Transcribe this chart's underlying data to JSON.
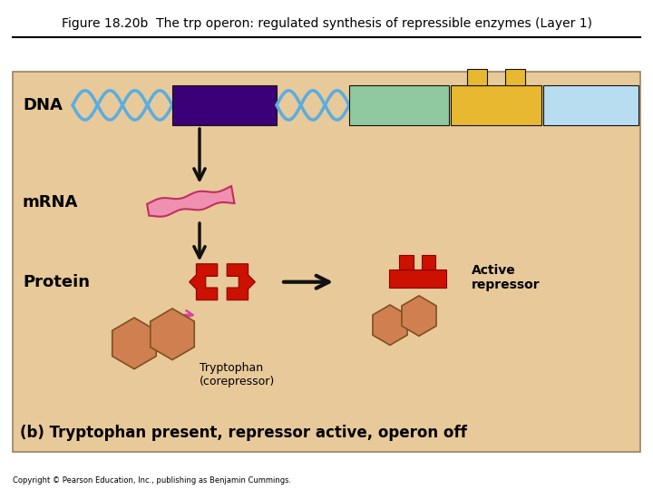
{
  "title": "Figure 18.20b  The trp operon: regulated synthesis of repressible enzymes (Layer 1)",
  "subtitle": "(b) Tryptophan present, repressor active, operon off",
  "copyright": "Copyright © Pearson Education, Inc., publishing as Benjamin Cummings.",
  "bg_color": "#e8c99a",
  "title_fontsize": 10,
  "subtitle_fontsize": 12,
  "dna_label": "DNA",
  "mrna_label": "mRNA",
  "protein_label": "Protein",
  "active_repressor_label": "Active\nrepressor",
  "tryptophan_label": "Tryptophan\n(corepressor)",
  "dna_helix_color": "#5aade0",
  "dna_box1_color": "#3b0077",
  "dna_box2_color": "#90c8a0",
  "dna_box3_color": "#e8b830",
  "dna_box4_color": "#b8ddf0",
  "mrna_color": "#f090b0",
  "protein_color": "#cc1100",
  "tryptophan_color": "#d08050",
  "arrow_color": "#111111",
  "pink_arrow_color": "#e040a0"
}
